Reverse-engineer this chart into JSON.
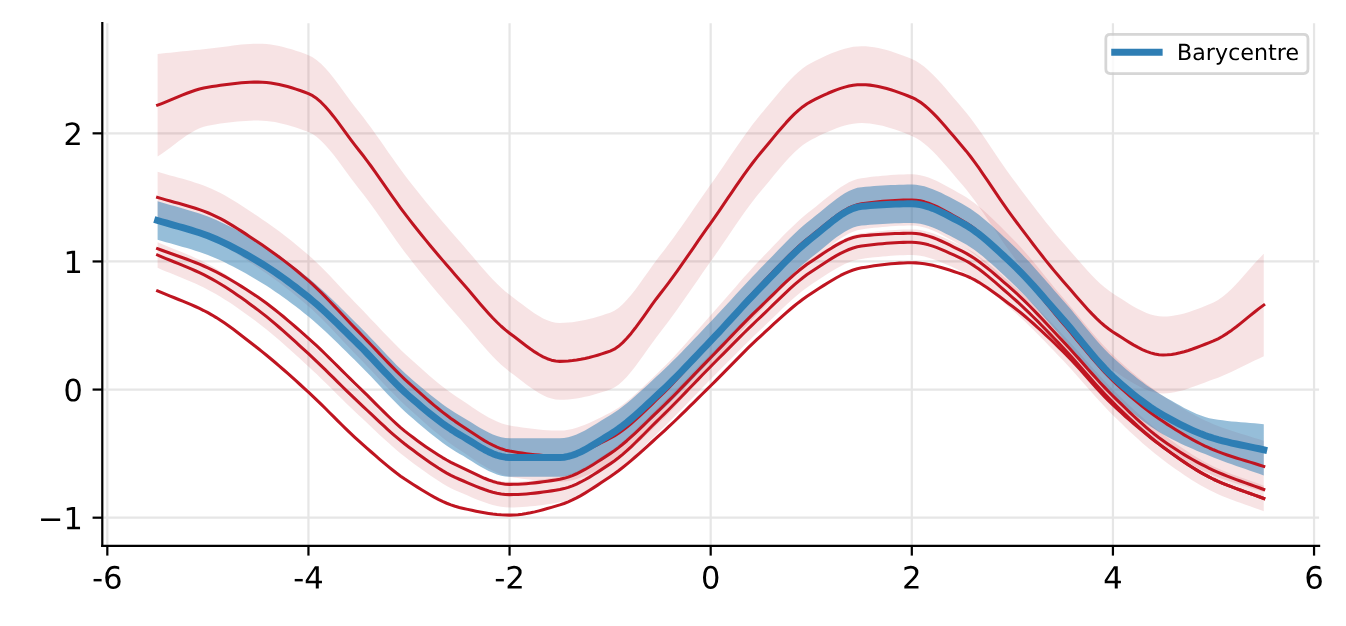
{
  "chart_data": {
    "type": "line",
    "x": [
      -5.5,
      -5,
      -4.5,
      -4,
      -3.5,
      -3,
      -2.5,
      -2,
      -1.5,
      -1,
      -0.5,
      0,
      0.5,
      1,
      1.5,
      2,
      2.5,
      3,
      3.5,
      4,
      4.5,
      5,
      5.5
    ],
    "series": [
      {
        "color": "#bf1521",
        "values": [
          2.22,
          2.36,
          2.4,
          2.31,
          1.87,
          1.33,
          0.86,
          0.44,
          0.22,
          0.3,
          0.75,
          1.3,
          1.85,
          2.25,
          2.38,
          2.28,
          1.9,
          1.35,
          0.85,
          0.45,
          0.27,
          0.38,
          0.66
        ],
        "lower": [
          1.82,
          2.06,
          2.1,
          2.01,
          1.57,
          1.03,
          0.56,
          0.14,
          -0.08,
          0.0,
          0.45,
          1.0,
          1.55,
          1.95,
          2.08,
          1.98,
          1.6,
          1.05,
          0.55,
          0.15,
          -0.03,
          0.08,
          0.26
        ],
        "upper": [
          2.62,
          2.66,
          2.7,
          2.61,
          2.17,
          1.63,
          1.16,
          0.74,
          0.52,
          0.6,
          1.05,
          1.6,
          2.15,
          2.55,
          2.68,
          2.58,
          2.2,
          1.65,
          1.15,
          0.75,
          0.57,
          0.68,
          1.06
        ]
      },
      {
        "color": "#bf1521",
        "values": [
          1.5,
          1.38,
          1.15,
          0.85,
          0.45,
          0.05,
          -0.27,
          -0.48,
          -0.52,
          -0.38,
          -0.05,
          0.38,
          0.82,
          1.2,
          1.45,
          1.48,
          1.32,
          0.98,
          0.52,
          0.07,
          -0.25,
          -0.47,
          -0.6
        ],
        "lower": [
          1.3,
          1.18,
          0.95,
          0.65,
          0.25,
          -0.15,
          -0.47,
          -0.68,
          -0.72,
          -0.58,
          -0.25,
          0.18,
          0.62,
          1.0,
          1.25,
          1.28,
          1.12,
          0.78,
          0.32,
          -0.13,
          -0.45,
          -0.67,
          -0.8
        ],
        "upper": [
          1.7,
          1.58,
          1.35,
          1.05,
          0.65,
          0.25,
          -0.07,
          -0.28,
          -0.32,
          -0.18,
          0.15,
          0.58,
          1.02,
          1.4,
          1.65,
          1.68,
          1.52,
          1.18,
          0.72,
          0.27,
          -0.05,
          -0.27,
          -0.4
        ]
      },
      {
        "color": "#bf1521",
        "values": [
          1.1,
          0.95,
          0.72,
          0.4,
          0.02,
          -0.35,
          -0.6,
          -0.74,
          -0.7,
          -0.5,
          -0.15,
          0.25,
          0.65,
          1.0,
          1.2,
          1.22,
          1.08,
          0.78,
          0.38,
          -0.05,
          -0.4,
          -0.63,
          -0.78
        ]
      },
      {
        "color": "#bf1521",
        "values": [
          1.05,
          0.88,
          0.62,
          0.28,
          -0.1,
          -0.45,
          -0.7,
          -0.82,
          -0.78,
          -0.58,
          -0.22,
          0.18,
          0.57,
          0.92,
          1.12,
          1.15,
          1.02,
          0.72,
          0.33,
          -0.1,
          -0.45,
          -0.7,
          -0.85
        ],
        "lower": [
          0.95,
          0.78,
          0.52,
          0.18,
          -0.2,
          -0.55,
          -0.8,
          -0.92,
          -0.88,
          -0.68,
          -0.32,
          0.08,
          0.47,
          0.82,
          1.02,
          1.05,
          0.92,
          0.62,
          0.23,
          -0.2,
          -0.55,
          -0.8,
          -0.95
        ],
        "upper": [
          1.15,
          0.98,
          0.72,
          0.38,
          0.0,
          -0.35,
          -0.6,
          -0.72,
          -0.68,
          -0.48,
          -0.12,
          0.28,
          0.67,
          1.02,
          1.22,
          1.25,
          1.12,
          0.82,
          0.43,
          0.0,
          -0.35,
          -0.6,
          -0.75
        ]
      },
      {
        "color": "#bf1521",
        "values": [
          0.77,
          0.6,
          0.32,
          -0.02,
          -0.4,
          -0.72,
          -0.92,
          -0.98,
          -0.9,
          -0.68,
          -0.35,
          0.03,
          0.42,
          0.75,
          0.95,
          0.99,
          0.9,
          0.65,
          0.3,
          -0.12,
          -0.45,
          -0.7,
          -0.85
        ]
      },
      {
        "name": "Barycentre",
        "color": "#2e7eb4",
        "values": [
          1.32,
          1.2,
          1.0,
          0.72,
          0.35,
          -0.05,
          -0.35,
          -0.53,
          -0.53,
          -0.35,
          -0.02,
          0.38,
          0.8,
          1.18,
          1.43,
          1.45,
          1.3,
          0.98,
          0.55,
          0.1,
          -0.2,
          -0.38,
          -0.47
        ],
        "lower": [
          1.17,
          1.05,
          0.85,
          0.57,
          0.2,
          -0.2,
          -0.5,
          -0.68,
          -0.68,
          -0.5,
          -0.17,
          0.23,
          0.65,
          1.03,
          1.28,
          1.3,
          1.15,
          0.83,
          0.4,
          -0.05,
          -0.35,
          -0.53,
          -0.67
        ],
        "upper": [
          1.47,
          1.35,
          1.15,
          0.87,
          0.5,
          0.1,
          -0.2,
          -0.38,
          -0.38,
          -0.2,
          0.13,
          0.53,
          0.95,
          1.33,
          1.58,
          1.6,
          1.45,
          1.13,
          0.7,
          0.25,
          -0.05,
          -0.23,
          -0.27
        ]
      }
    ],
    "xlim": [
      -6.05,
      6.05
    ],
    "xticks": [
      -6,
      -4,
      -2,
      0,
      2,
      4,
      6
    ],
    "ylim": [
      -1.22,
      2.86
    ],
    "yticks": [
      {
        "value": -1,
        "label": "−1"
      },
      0,
      1,
      2
    ],
    "grid": true,
    "legend": "top right",
    "line_style": "solid",
    "marker": "none"
  }
}
